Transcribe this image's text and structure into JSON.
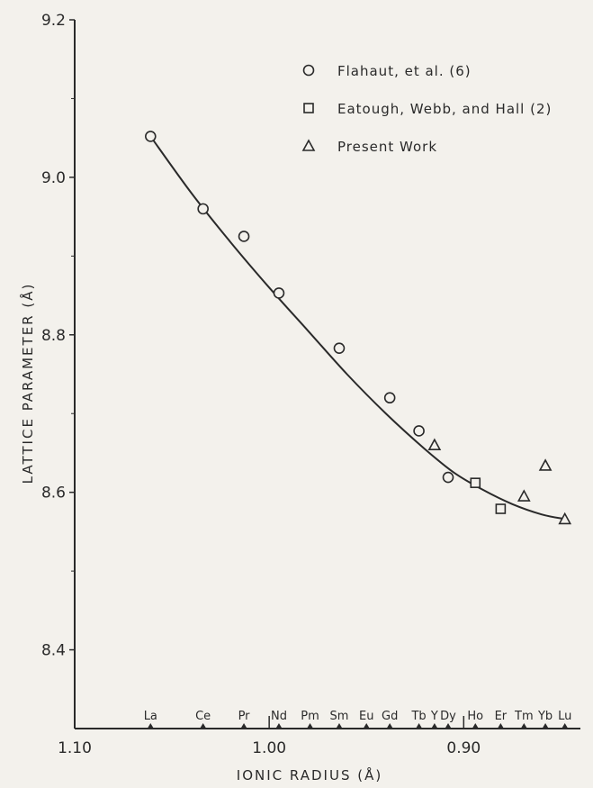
{
  "chart_data": {
    "type": "scatter",
    "xlabel": "IONIC RADIUS (Å)",
    "ylabel": "LATTICE PARAMETER (Å)",
    "xlim": [
      1.1,
      0.84
    ],
    "ylim": [
      8.3,
      9.2
    ],
    "x_axis_reversed": true,
    "x_ticks": [
      {
        "value": 1.1,
        "label": "1.10"
      },
      {
        "value": 1.0,
        "label": "1.00"
      },
      {
        "value": 0.9,
        "label": "0.90"
      }
    ],
    "y_ticks": [
      {
        "value": 9.2,
        "label": "9.2"
      },
      {
        "value": 9.0,
        "label": "9.0"
      },
      {
        "value": 8.8,
        "label": "8.8"
      },
      {
        "value": 8.6,
        "label": "8.6"
      },
      {
        "value": 8.4,
        "label": "8.4"
      }
    ],
    "y_minor_ticks": [
      9.1,
      8.9,
      8.7,
      8.5
    ],
    "element_labels": [
      {
        "label": "La",
        "x": 1.061
      },
      {
        "label": "Ce",
        "x": 1.034
      },
      {
        "label": "Pr",
        "x": 1.013
      },
      {
        "label": "Nd",
        "x": 0.995
      },
      {
        "label": "Pm",
        "x": 0.979
      },
      {
        "label": "Sm",
        "x": 0.964
      },
      {
        "label": "Eu",
        "x": 0.95
      },
      {
        "label": "Gd",
        "x": 0.938
      },
      {
        "label": "Tb",
        "x": 0.923
      },
      {
        "label": "Y",
        "x": 0.915
      },
      {
        "label": "Dy",
        "x": 0.908
      },
      {
        "label": "Ho",
        "x": 0.894
      },
      {
        "label": "Er",
        "x": 0.881
      },
      {
        "label": "Tm",
        "x": 0.869
      },
      {
        "label": "Yb",
        "x": 0.858
      },
      {
        "label": "Lu",
        "x": 0.848
      }
    ],
    "series": [
      {
        "name": "Flahaut, et al. (6)",
        "marker": "circle",
        "points": [
          {
            "x": 1.061,
            "y": 9.052
          },
          {
            "x": 1.034,
            "y": 8.96
          },
          {
            "x": 1.013,
            "y": 8.925
          },
          {
            "x": 0.995,
            "y": 8.853
          },
          {
            "x": 0.964,
            "y": 8.783
          },
          {
            "x": 0.938,
            "y": 8.72
          },
          {
            "x": 0.923,
            "y": 8.678
          },
          {
            "x": 0.908,
            "y": 8.619
          }
        ]
      },
      {
        "name": "Eatough, Webb, and Hall (2)",
        "marker": "square",
        "points": [
          {
            "x": 0.894,
            "y": 8.612
          },
          {
            "x": 0.881,
            "y": 8.579
          }
        ]
      },
      {
        "name": "Present Work",
        "marker": "triangle",
        "points": [
          {
            "x": 0.915,
            "y": 8.66
          },
          {
            "x": 0.869,
            "y": 8.595
          },
          {
            "x": 0.858,
            "y": 8.634
          },
          {
            "x": 0.848,
            "y": 8.566
          }
        ]
      }
    ],
    "fit_curve": [
      {
        "x": 1.061,
        "y": 9.052
      },
      {
        "x": 1.04,
        "y": 8.98
      },
      {
        "x": 1.02,
        "y": 8.918
      },
      {
        "x": 1.0,
        "y": 8.86
      },
      {
        "x": 0.98,
        "y": 8.805
      },
      {
        "x": 0.96,
        "y": 8.75
      },
      {
        "x": 0.94,
        "y": 8.7
      },
      {
        "x": 0.92,
        "y": 8.655
      },
      {
        "x": 0.905,
        "y": 8.625
      },
      {
        "x": 0.89,
        "y": 8.603
      },
      {
        "x": 0.875,
        "y": 8.585
      },
      {
        "x": 0.86,
        "y": 8.572
      },
      {
        "x": 0.848,
        "y": 8.566
      }
    ]
  }
}
